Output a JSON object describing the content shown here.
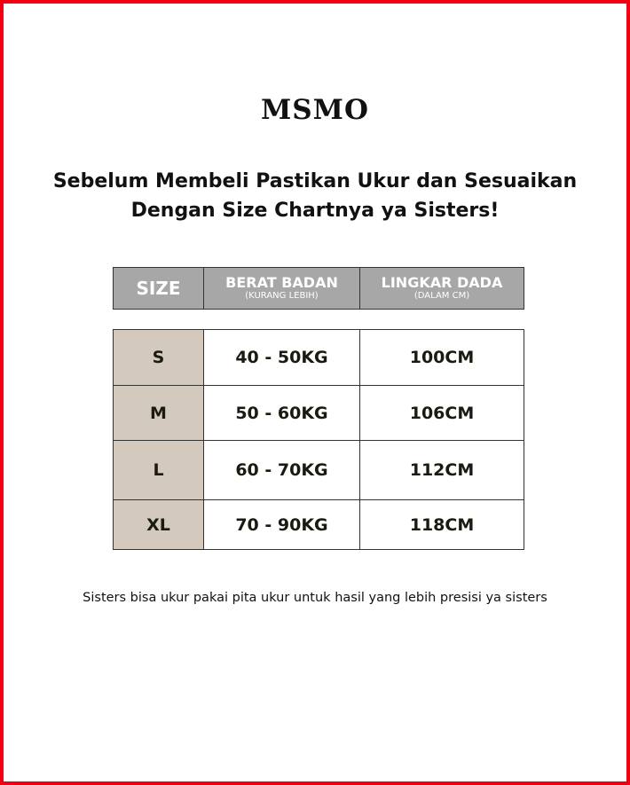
{
  "brand": "MSMO",
  "title_line1": "Sebelum Membeli Pastikan Ukur dan Sesuaikan",
  "title_line2": "Dengan Size Chartnya ya Sisters!",
  "header": {
    "size": "SIZE",
    "weight": "BERAT BADAN",
    "weight_sub": "(KURANG LEBIH)",
    "chest": "LINGKAR DADA",
    "chest_sub": "(DALAM CM)"
  },
  "rows": [
    {
      "size": "S",
      "weight": "40 - 50KG",
      "chest": "100CM"
    },
    {
      "size": "M",
      "weight": "50 - 60KG",
      "chest": "106CM"
    },
    {
      "size": "L",
      "weight": "60 - 70KG",
      "chest": "112CM"
    },
    {
      "size": "XL",
      "weight": "70 - 90KG",
      "chest": "118CM"
    }
  ],
  "note": "Sisters bisa ukur pakai pita ukur untuk hasil yang lebih presisi ya sisters",
  "colors": {
    "border": "#f00010",
    "header_bg": "#a7a7a7",
    "size_cell_bg": "#d3c9bd"
  }
}
